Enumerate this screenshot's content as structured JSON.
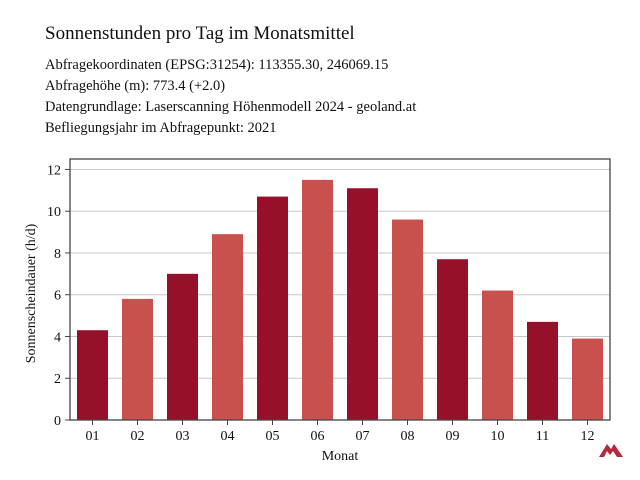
{
  "header": {
    "title": "Sonnenstunden pro Tag im Monatsmittel",
    "info_lines": [
      "Abfragekoordinaten (EPSG:31254): 113355.30, 246069.15",
      "Abfragehöhe (m): 773.4 (+2.0)",
      "Datengrundlage: Laserscanning Höhenmodell 2024 - geoland.at",
      "Befliegungsjahr im Abfragepunkt: 2021"
    ]
  },
  "chart_data": {
    "type": "bar",
    "categories": [
      "01",
      "02",
      "03",
      "04",
      "05",
      "06",
      "07",
      "08",
      "09",
      "10",
      "11",
      "12"
    ],
    "values": [
      4.3,
      5.8,
      7.0,
      8.9,
      10.7,
      11.5,
      11.1,
      9.6,
      7.7,
      6.2,
      4.7,
      3.9
    ],
    "xlabel": "Monat",
    "ylabel": "Sonnenscheindauer (h/d)",
    "ylim": [
      0,
      12.5
    ],
    "yticks": [
      0,
      2,
      4,
      6,
      8,
      10,
      12
    ],
    "grid": true,
    "colors": {
      "bar_dark": "#961029",
      "bar_light": "#c8504d",
      "grid": "#c8c8c8",
      "frame": "#444444"
    }
  },
  "logo": {
    "icon": "brand-logo-icon",
    "color": "#b8283c"
  }
}
